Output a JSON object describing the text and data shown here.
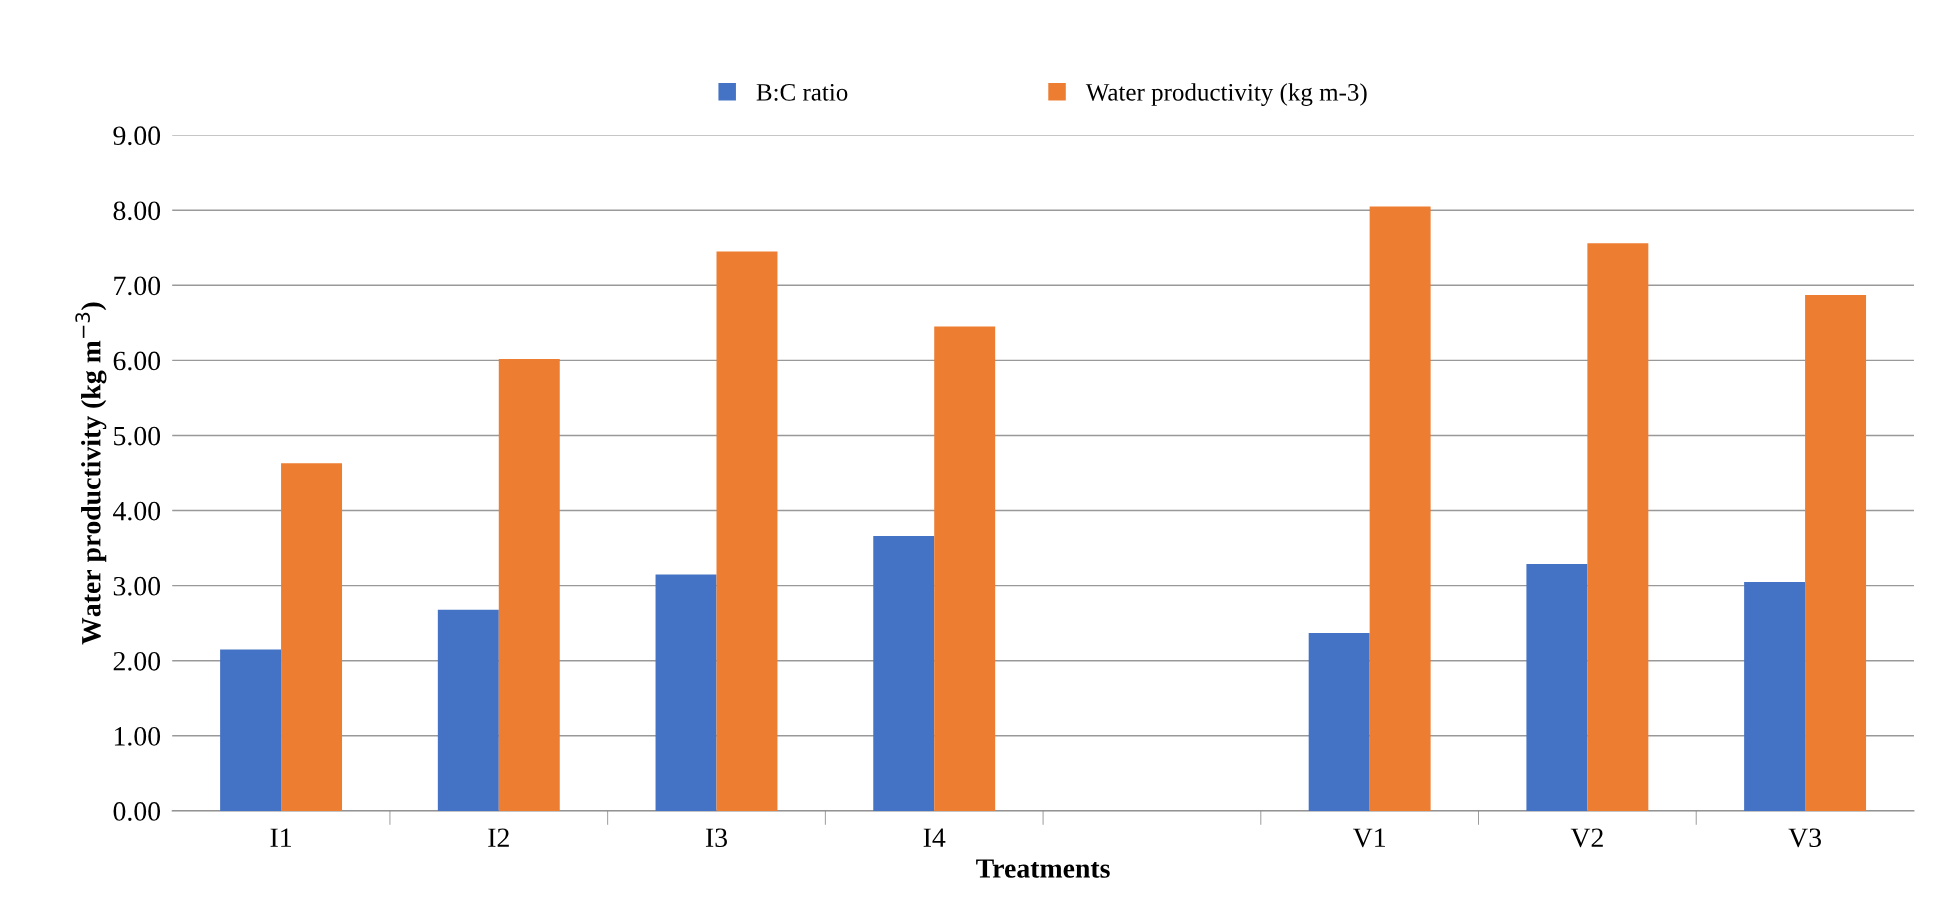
{
  "chart_data": {
    "type": "bar",
    "xlabel": "Treatments",
    "ylabel": "Water productivity (kg m$^{−3}$)",
    "categories": [
      "I1",
      "I2",
      "I3",
      "I4",
      null,
      "V1",
      "V2",
      "V3"
    ],
    "series": [
      {
        "name": "B:C ratio",
        "color": "#4472c4",
        "values": [
          2.15,
          2.68,
          3.15,
          3.66,
          null,
          2.37,
          3.29,
          3.05
        ]
      },
      {
        "name": "Water productivity (kg m-3)",
        "color": "#ed7d31",
        "values": [
          4.63,
          6.02,
          7.45,
          6.45,
          null,
          8.05,
          7.56,
          6.87
        ]
      }
    ],
    "ylim": [
      0,
      9
    ],
    "yticks": [
      {
        "value": 0,
        "label": "0.00"
      },
      {
        "value": 1,
        "label": "1.00"
      },
      {
        "value": 2,
        "label": "2.00"
      },
      {
        "value": 3,
        "label": "3.00"
      },
      {
        "value": 4,
        "label": "4.00"
      },
      {
        "value": 5,
        "label": "5.00"
      },
      {
        "value": 6,
        "label": "6.00"
      },
      {
        "value": 7,
        "label": "7.00"
      },
      {
        "value": 8,
        "label": "8.00"
      },
      {
        "value": 9,
        "label": "9.00"
      }
    ],
    "grid": "y",
    "legend": "top"
  }
}
